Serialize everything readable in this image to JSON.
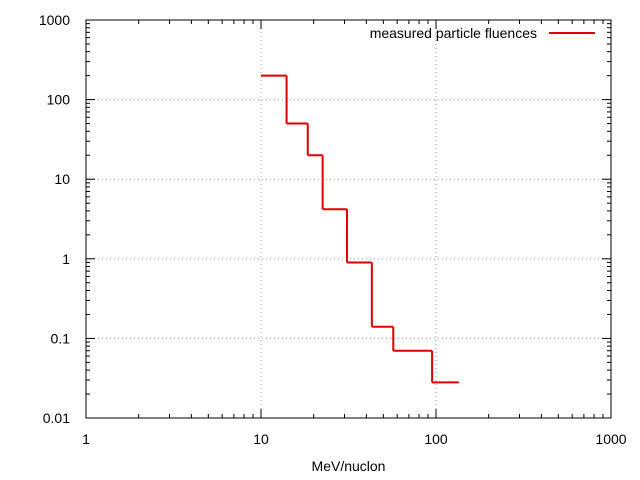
{
  "chart_data": {
    "type": "line",
    "step": true,
    "xscale": "log",
    "yscale": "log",
    "xlim": [
      1,
      1000
    ],
    "ylim": [
      0.01,
      1000
    ],
    "xlabel": "MeV/nuclon",
    "ylabel": "",
    "title": "",
    "grid": true,
    "legend_position": "top-right",
    "x_ticks": [
      {
        "value": 1,
        "label": "1"
      },
      {
        "value": 10,
        "label": "10"
      },
      {
        "value": 100,
        "label": "100"
      },
      {
        "value": 1000,
        "label": "1000"
      }
    ],
    "y_ticks": [
      {
        "value": 0.01,
        "label": "0.01"
      },
      {
        "value": 0.1,
        "label": "0.1"
      },
      {
        "value": 1,
        "label": "1"
      },
      {
        "value": 10,
        "label": "10"
      },
      {
        "value": 100,
        "label": "100"
      },
      {
        "value": 1000,
        "label": "1000"
      }
    ],
    "series": [
      {
        "name": "measured particle fluences",
        "color": "#e00000",
        "bins": [
          {
            "x0": 10,
            "x1": 14,
            "y": 200
          },
          {
            "x0": 14,
            "x1": 18.5,
            "y": 50
          },
          {
            "x0": 18.5,
            "x1": 22.5,
            "y": 20
          },
          {
            "x0": 22.5,
            "x1": 31,
            "y": 4.2
          },
          {
            "x0": 31,
            "x1": 43,
            "y": 0.9
          },
          {
            "x0": 43,
            "x1": 57,
            "y": 0.14
          },
          {
            "x0": 57,
            "x1": 95,
            "y": 0.07
          },
          {
            "x0": 95,
            "x1": 135,
            "y": 0.028
          }
        ]
      }
    ]
  }
}
